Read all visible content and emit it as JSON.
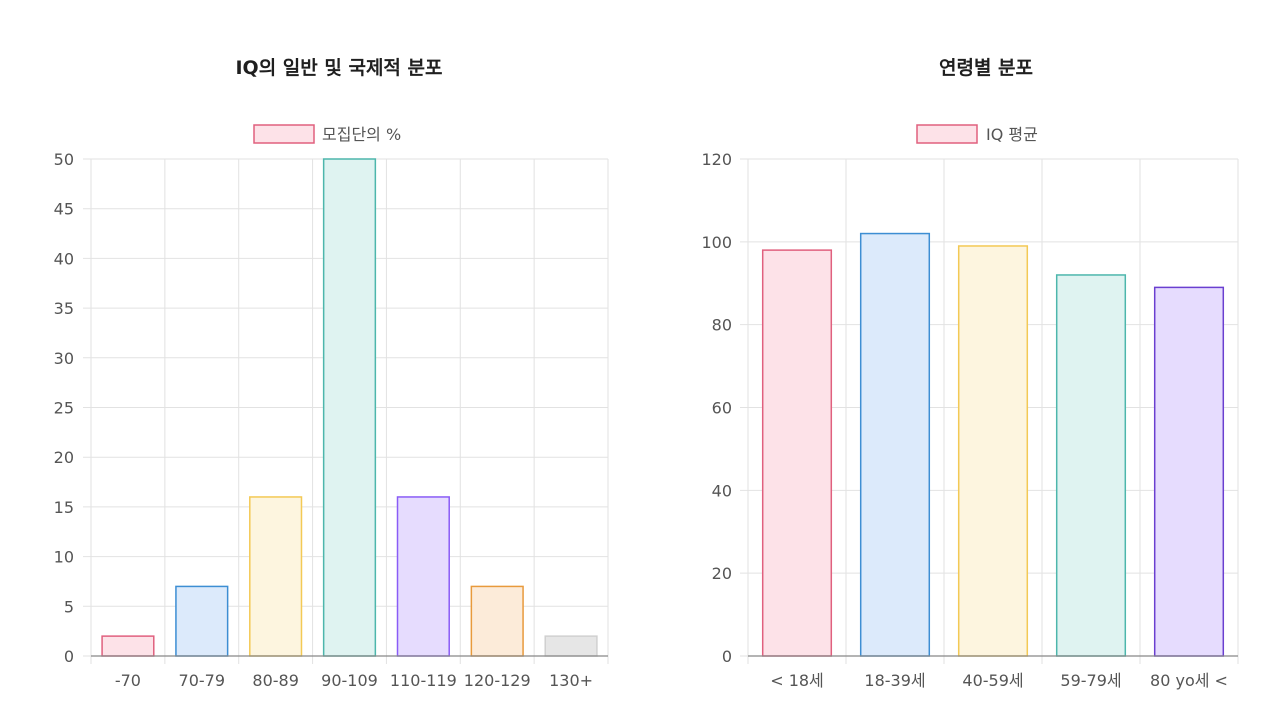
{
  "chart_data": [
    {
      "type": "bar",
      "title": "IQ의 일반 및 국제적 분포",
      "legend": {
        "label": "모집단의 %",
        "position": "top"
      },
      "categories": [
        "-70",
        "70-79",
        "80-89",
        "90-109",
        "110-119",
        "120-129",
        "130+"
      ],
      "series": [
        {
          "name": "모집단의 %",
          "values": [
            2,
            7,
            16,
            50,
            16,
            7,
            2
          ]
        }
      ],
      "ylim": [
        0,
        50
      ],
      "yticks": [
        0,
        5,
        10,
        15,
        20,
        25,
        30,
        35,
        40,
        45,
        50
      ],
      "grid": true,
      "colors": {
        "fill": [
          "#fde2e8",
          "#dceafb",
          "#fdf5df",
          "#dff3f1",
          "#e6dcfe",
          "#fcebd9",
          "#e6e6e6"
        ],
        "border": [
          "#e0607e",
          "#3d8ed3",
          "#f3c955",
          "#4db6ac",
          "#8a5cf6",
          "#e89a3c",
          "#d0d0d0"
        ]
      }
    },
    {
      "type": "bar",
      "title": "연령별 분포",
      "legend": {
        "label": "IQ 평균",
        "position": "top"
      },
      "categories": [
        "< 18세",
        "18-39세",
        "40-59세",
        "59-79세",
        "80 yo세 <"
      ],
      "series": [
        {
          "name": "IQ 평균",
          "values": [
            98,
            102,
            99,
            92,
            89
          ]
        }
      ],
      "ylim": [
        0,
        120
      ],
      "yticks": [
        0,
        20,
        40,
        60,
        80,
        100,
        120
      ],
      "grid": true,
      "colors": {
        "fill": [
          "#fde2e8",
          "#dceafb",
          "#fdf5df",
          "#dff3f1",
          "#e6dcfe"
        ],
        "border": [
          "#e0607e",
          "#3d8ed3",
          "#f3c955",
          "#4db6ac",
          "#6a3fd0"
        ]
      }
    }
  ]
}
